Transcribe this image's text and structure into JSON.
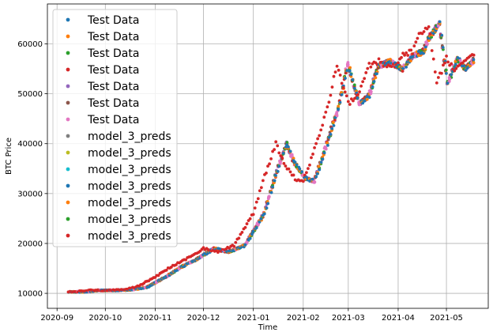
{
  "chart_data": {
    "type": "scatter",
    "xlabel": "Time",
    "ylabel": "BTC Price",
    "xlim": [
      "2020-08-26",
      "2021-05-27"
    ],
    "ylim": [
      7000,
      68000
    ],
    "x_ticks": [
      "2020-09-01",
      "2020-10-01",
      "2020-11-01",
      "2020-12-01",
      "2021-01-01",
      "2021-02-01",
      "2021-03-01",
      "2021-04-01",
      "2021-05-01"
    ],
    "x_tick_labels": [
      "2020-09",
      "2020-10",
      "2020-11",
      "2020-12",
      "2021-01",
      "2021-02",
      "2021-03",
      "2021-04",
      "2021-05"
    ],
    "y_ticks": [
      10000,
      20000,
      30000,
      40000,
      50000,
      60000
    ],
    "y_tick_labels": [
      "10000",
      "20000",
      "30000",
      "40000",
      "50000",
      "60000"
    ],
    "grid": true,
    "legend_position": "upper-left",
    "legend": [
      {
        "name": "Test Data",
        "color": "#1f77b4"
      },
      {
        "name": "Test Data",
        "color": "#ff7f0e"
      },
      {
        "name": "Test Data",
        "color": "#2ca02c"
      },
      {
        "name": "Test Data",
        "color": "#d62728"
      },
      {
        "name": "Test Data",
        "color": "#9467bd"
      },
      {
        "name": "Test Data",
        "color": "#8c564b"
      },
      {
        "name": "Test Data",
        "color": "#e377c2"
      },
      {
        "name": "model_3_preds",
        "color": "#7f7f7f"
      },
      {
        "name": "model_3_preds",
        "color": "#bcbd22"
      },
      {
        "name": "model_3_preds",
        "color": "#17becf"
      },
      {
        "name": "model_3_preds",
        "color": "#1f77b4"
      },
      {
        "name": "model_3_preds",
        "color": "#ff7f0e"
      },
      {
        "name": "model_3_preds",
        "color": "#2ca02c"
      },
      {
        "name": "model_3_preds",
        "color": "#d62728"
      }
    ],
    "price_curve": {
      "x": [
        "2020-09-08",
        "2020-09-12",
        "2020-09-20",
        "2020-10-01",
        "2020-10-10",
        "2020-10-20",
        "2020-11-01",
        "2020-11-10",
        "2020-11-20",
        "2020-12-01",
        "2020-12-10",
        "2020-12-20",
        "2021-01-01",
        "2021-01-08",
        "2021-01-15",
        "2021-01-20",
        "2021-01-27",
        "2021-02-01",
        "2021-02-05",
        "2021-02-10",
        "2021-02-16",
        "2021-02-22",
        "2021-03-01",
        "2021-03-07",
        "2021-03-13",
        "2021-03-20",
        "2021-03-28",
        "2021-04-03",
        "2021-04-10",
        "2021-04-14",
        "2021-04-20",
        "2021-04-25",
        "2021-05-01",
        "2021-05-06",
        "2021-05-12",
        "2021-05-18"
      ],
      "y": [
        10300,
        10300,
        10600,
        10600,
        10700,
        11200,
        13300,
        15200,
        16800,
        19000,
        18300,
        19600,
        26000,
        33500,
        40000,
        36000,
        33000,
        32500,
        36000,
        41000,
        47000,
        56000,
        48000,
        49500,
        55500,
        56500,
        55000,
        57500,
        58500,
        61500,
        64000,
        52000,
        57000,
        55000,
        57000,
        57500
      ]
    }
  }
}
